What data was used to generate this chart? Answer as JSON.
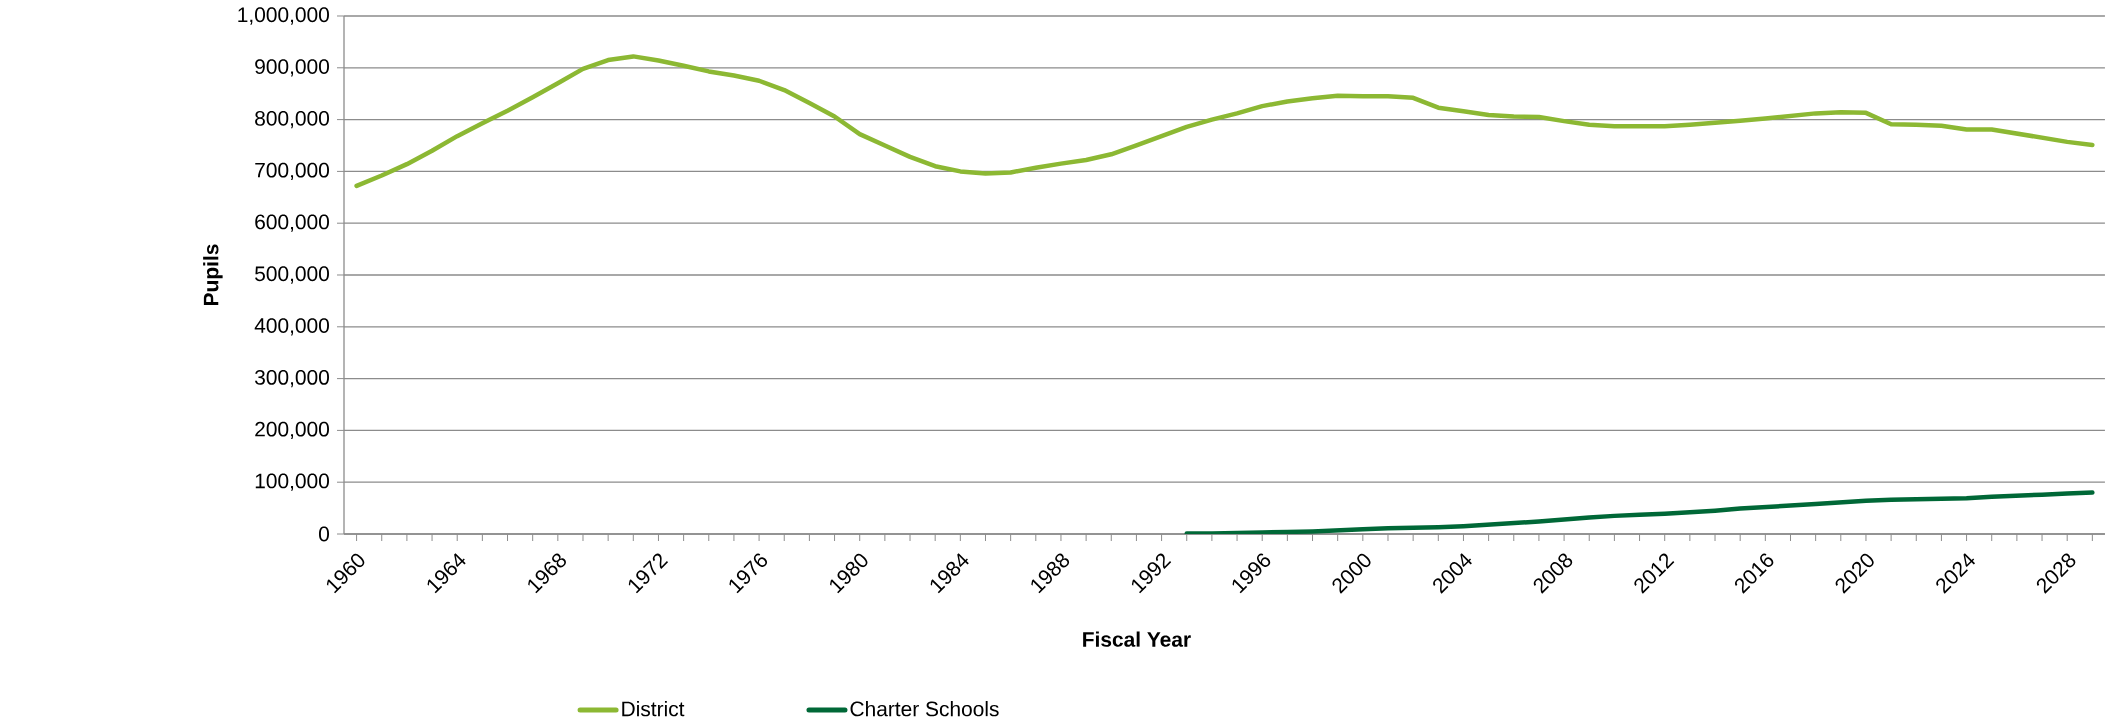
{
  "chart_data": {
    "type": "line",
    "xlabel": "Fiscal Year",
    "ylabel": "Pupils",
    "grid": "y",
    "legend": "bottom",
    "categories": [
      "1960",
      null,
      null,
      null,
      "1964",
      null,
      null,
      null,
      "1968",
      null,
      null,
      null,
      "1972",
      null,
      null,
      null,
      "1976",
      null,
      null,
      null,
      "1980",
      null,
      null,
      null,
      "1984",
      null,
      null,
      null,
      "1988",
      null,
      null,
      null,
      "1992",
      null,
      null,
      null,
      "1996",
      null,
      null,
      null,
      "2000",
      null,
      null,
      null,
      "2004",
      null,
      null,
      null,
      "2008",
      null,
      null,
      null,
      "2012",
      null,
      null,
      null,
      "2016",
      null,
      null,
      null,
      "2020",
      null,
      null,
      null,
      "2024",
      null,
      null,
      null,
      "2028",
      null
    ],
    "ylim": [
      0,
      1000000
    ],
    "yticks": [
      0,
      {
        "value": 100000,
        "label": "100,000"
      },
      {
        "value": 200000,
        "label": "200,000"
      },
      {
        "value": 300000,
        "label": "300,000"
      },
      {
        "value": 400000,
        "label": "400,000"
      },
      {
        "value": 500000,
        "label": "500,000"
      },
      {
        "value": 600000,
        "label": "600,000"
      },
      {
        "value": 700000,
        "label": "700,000"
      },
      {
        "value": 800000,
        "label": "800,000"
      },
      {
        "value": 900000,
        "label": "900,000"
      },
      {
        "value": 1000000,
        "label": "1,000,000"
      }
    ],
    "series": [
      {
        "name": "District",
        "color": "#8cb833",
        "values": [
          672000,
          692000,
          714000,
          740000,
          768000,
          793000,
          817000,
          843000,
          870000,
          898000,
          915000,
          922000,
          914000,
          904000,
          893000,
          885000,
          875000,
          857000,
          832000,
          806000,
          772000,
          750000,
          728000,
          710000,
          700000,
          696000,
          698000,
          707000,
          715000,
          722000,
          733000,
          750000,
          768000,
          786000,
          800000,
          812000,
          826000,
          835000,
          841000,
          846000,
          845000,
          845000,
          842000,
          823000,
          816000,
          809000,
          806000,
          805000,
          797000,
          790000,
          787000,
          787000,
          787000,
          790000,
          794000,
          798000,
          802000,
          807000,
          812000,
          814000,
          813000,
          791000,
          790000,
          788000,
          781000,
          781000,
          773000,
          765000,
          757000,
          751000
        ]
      },
      {
        "name": "Charter Schools",
        "color": "#006837",
        "values": [
          null,
          null,
          null,
          null,
          null,
          null,
          null,
          null,
          null,
          null,
          null,
          null,
          null,
          null,
          null,
          null,
          null,
          null,
          null,
          null,
          null,
          null,
          null,
          null,
          null,
          null,
          null,
          null,
          null,
          null,
          null,
          null,
          null,
          1000,
          1000,
          2000,
          3000,
          4000,
          5000,
          7000,
          9000,
          11000,
          12000,
          13000,
          15000,
          18000,
          21000,
          24000,
          28000,
          32000,
          35000,
          37000,
          39000,
          42000,
          45000,
          49000,
          52000,
          55000,
          58000,
          61000,
          64000,
          66000,
          67000,
          68000,
          69000,
          72000,
          74000,
          76000,
          78000,
          80000
        ]
      }
    ]
  }
}
